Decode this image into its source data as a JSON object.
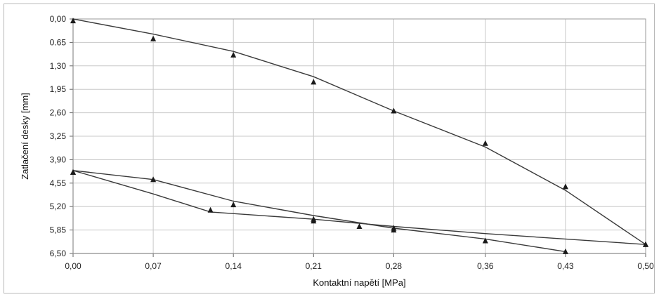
{
  "chart_data": {
    "type": "line",
    "title": "",
    "xlabel": "Kontaktní napětí [MPa]",
    "ylabel": "Zatlačení desky [mm]",
    "x_ticks": [
      0.0,
      0.07,
      0.14,
      0.21,
      0.28,
      0.36,
      0.43,
      0.5
    ],
    "x_tick_labels": [
      "0,00",
      "0,07",
      "0,14",
      "0,21",
      "0,28",
      "0,36",
      "0,43",
      "0,50"
    ],
    "y_ticks": [
      0.0,
      0.65,
      1.3,
      1.95,
      2.6,
      3.25,
      3.9,
      4.55,
      5.2,
      5.85,
      6.5
    ],
    "y_tick_labels": [
      "0,00",
      "0.65",
      "1,30",
      "1,95",
      "2,60",
      "3,25",
      "3,90",
      "4,55",
      "5,20",
      "5,85",
      "6,50"
    ],
    "xlim": [
      0.0,
      0.5
    ],
    "ylim": [
      0.0,
      6.5
    ],
    "y_inverted": true,
    "grid": true,
    "colors": {
      "line": "#3a3a3a",
      "marker": "#1a1a1a",
      "grid": "#c8c8c8",
      "plot_bg": "#ffffff",
      "border": "#b8b8b8"
    },
    "series": [
      {
        "x": [
          0.0,
          0.07,
          0.14,
          0.21,
          0.28,
          0.36,
          0.43,
          0.5
        ],
        "y": [
          0.05,
          0.55,
          1.0,
          1.75,
          2.55,
          3.45,
          4.65,
          6.25
        ]
      },
      {
        "x": [
          0.0,
          0.07,
          0.14,
          0.21,
          0.28,
          0.36,
          0.43
        ],
        "y": [
          4.25,
          4.45,
          5.15,
          5.55,
          5.85,
          6.15,
          6.45
        ]
      },
      {
        "x": [
          0.0,
          0.12,
          0.21,
          0.25,
          0.28,
          0.5
        ],
        "y": [
          4.25,
          5.3,
          5.6,
          5.75,
          5.8,
          6.25
        ]
      }
    ],
    "line_shapes": [
      {
        "x": [
          0.0,
          0.07,
          0.14,
          0.21,
          0.28,
          0.36,
          0.43,
          0.5
        ],
        "y": [
          0.0,
          0.42,
          0.9,
          1.6,
          2.55,
          3.55,
          4.75,
          6.25
        ]
      },
      {
        "x": [
          0.0,
          0.07,
          0.14,
          0.21,
          0.28,
          0.36,
          0.43
        ],
        "y": [
          4.2,
          4.45,
          5.05,
          5.45,
          5.8,
          6.1,
          6.45
        ]
      },
      {
        "x": [
          0.0,
          0.07,
          0.12,
          0.21,
          0.28,
          0.36,
          0.5
        ],
        "y": [
          4.2,
          4.85,
          5.35,
          5.55,
          5.75,
          5.95,
          6.25
        ]
      }
    ]
  }
}
